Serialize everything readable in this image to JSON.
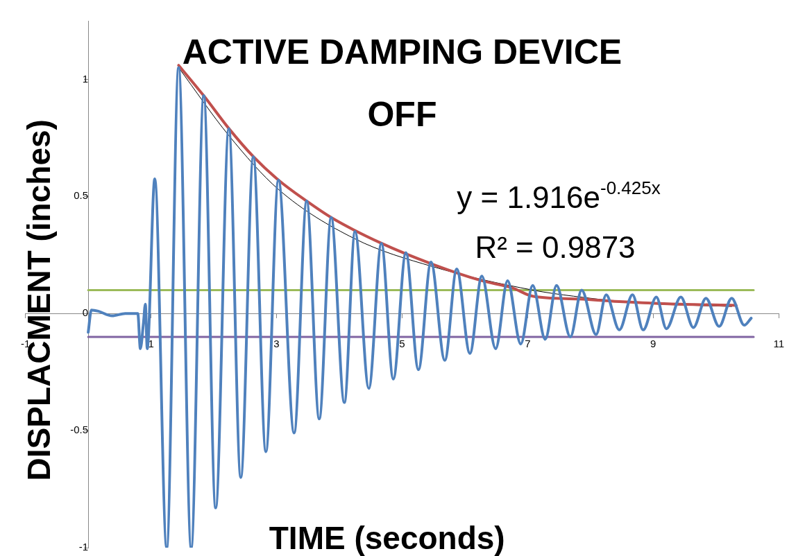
{
  "chart_data": {
    "type": "line",
    "title": "ACTIVE DAMPING DEVICE OFF",
    "xlabel": "TIME (seconds)",
    "ylabel": "DISPLACMENT (inches)",
    "annotations": [
      "y = 1.916e$^{-0.425x}$",
      "R² = 0.9873"
    ],
    "xlim": [
      -1,
      11
    ],
    "xticks": [
      -1,
      1,
      3,
      5,
      7,
      9,
      11
    ],
    "ylim": [
      -1,
      1.25
    ],
    "yticks": [
      -1,
      -0.5,
      0,
      0.5,
      1
    ],
    "grid": false,
    "legend": false,
    "marker": "none",
    "line_style": "solid",
    "series": [
      {
        "color": "#4f81bd",
        "x": [
          0,
          0.05,
          0.16,
          0.38,
          0.59,
          0.79,
          0.83,
          0.88,
          0.91,
          0.94,
          1.06,
          1.25,
          1.44,
          1.64,
          1.84,
          2.03,
          2.24,
          2.43,
          2.63,
          2.83,
          3.03,
          3.28,
          3.48,
          3.68,
          3.87,
          4.08,
          4.25,
          4.47,
          4.67,
          4.86,
          5.06,
          5.26,
          5.46,
          5.68,
          5.87,
          6.08,
          6.27,
          6.49,
          6.68,
          6.89,
          7.08,
          7.28,
          7.46,
          7.68,
          7.86,
          8.09,
          8.25,
          8.46,
          8.67,
          8.84,
          9.05,
          9.21,
          9.44,
          9.64,
          9.84,
          10.05,
          10.25,
          10.45,
          10.56
        ],
        "values": [
          -0.08,
          0.015,
          0.01,
          -0.01,
          0,
          0,
          -0.15,
          -0.04,
          0.04,
          -0.15,
          0.575,
          -1,
          1.05,
          -1,
          0.93,
          -0.83,
          0.79,
          -0.7,
          0.67,
          -0.59,
          0.57,
          -0.51,
          0.48,
          -0.45,
          0.41,
          -0.38,
          0.35,
          -0.32,
          0.3,
          -0.28,
          0.26,
          -0.24,
          0.22,
          -0.2,
          0.19,
          -0.17,
          0.16,
          -0.15,
          0.14,
          -0.13,
          0.12,
          -0.11,
          0.12,
          -0.1,
          0.1,
          -0.09,
          0.08,
          -0.07,
          0.08,
          -0.07,
          0.07,
          -0.065,
          0.07,
          -0.06,
          0.065,
          -0.055,
          0.065,
          -0.05,
          -0.02
        ]
      },
      {
        "color": "#c0504d",
        "x": [
          1.44,
          1.84,
          2.24,
          2.63,
          3.03,
          3.48,
          3.87,
          4.67,
          5.49,
          6.27,
          6.75,
          7.08,
          7.8,
          8.52,
          9.24,
          10.32
        ],
        "values": [
          1.06,
          0.93,
          0.79,
          0.67,
          0.57,
          0.48,
          0.41,
          0.3,
          0.21,
          0.14,
          0.11,
          0.074,
          0.062,
          0.05,
          0.041,
          0.035
        ]
      },
      {
        "color": "#000000",
        "x": [
          1.44,
          2.24,
          3.03,
          4.24,
          5.49,
          7.08,
          7.73,
          8.81,
          10.25
        ],
        "values": [
          1.05,
          0.76,
          0.53,
          0.32,
          0.2,
          0.1,
          0.074,
          0.044,
          0.03
        ]
      },
      {
        "color": "#9bbb59",
        "x": [
          0,
          10.6
        ],
        "values": [
          0.1,
          0.1
        ]
      },
      {
        "color": "#8064a2",
        "x": [
          0,
          10.6
        ],
        "values": [
          -0.1,
          -0.1
        ]
      }
    ]
  }
}
